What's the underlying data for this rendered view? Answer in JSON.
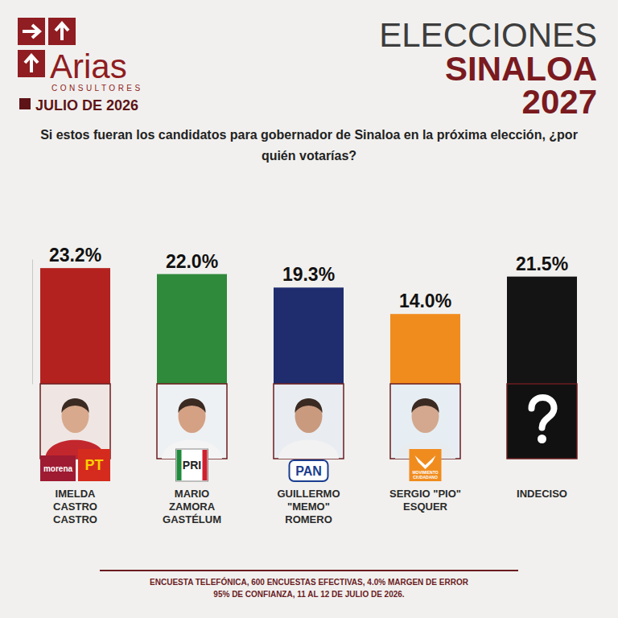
{
  "header": {
    "brand": "Arias",
    "brand_sub": "CONSULTORES",
    "date": "JULIO DE 2026",
    "title_lines": [
      "ELECCIONES",
      "SINALOA",
      "2027"
    ]
  },
  "chart_data": {
    "type": "bar",
    "subtitle": "Si estos fueran los candidatos para gobernador de Sinaloa en la próxima elección, ¿por quién votarías?",
    "categories": [
      "IMELDA CASTRO CASTRO",
      "MARIO ZAMORA GASTÉLUM",
      "GUILLERMO \"MEMO\" ROMERO",
      "SERGIO \"PIO\" ESQUER",
      "INDECISO"
    ],
    "values": [
      23.2,
      22.0,
      19.3,
      14.0,
      21.5
    ],
    "value_labels": [
      "23.2%",
      "22.0%",
      "19.3%",
      "14.0%",
      "21.5%"
    ],
    "colors": [
      "#b3221e",
      "#2f8a3b",
      "#1f2c6e",
      "#f08c1e",
      "#141414"
    ],
    "parties": [
      [
        "morena",
        "PT"
      ],
      [
        "PRI"
      ],
      [
        "PAN"
      ],
      [
        "MOVIMIENTO CIUDADANO"
      ],
      null
    ],
    "ylim": [
      0,
      25
    ],
    "data_labels": true,
    "tick_labels": false,
    "grid": false
  },
  "footer": [
    "ENCUESTA TELEFÓNICA, 600 ENCUESTAS EFECTIVAS, 4.0% MARGEN DE ERROR",
    "95% DE CONFIANZA, 11 AL 12 DE JULIO DE 2026."
  ]
}
